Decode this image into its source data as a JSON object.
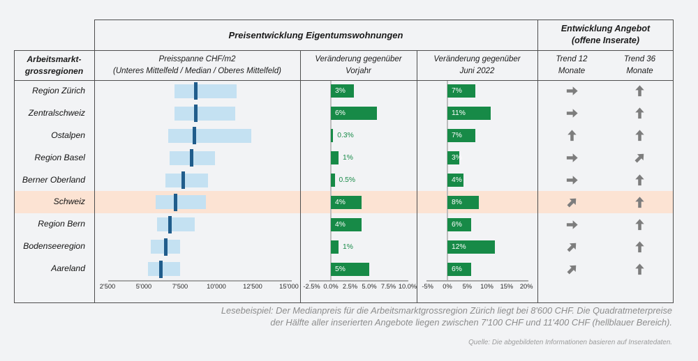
{
  "header": {
    "price_group_title": "Preisentwicklung Eigentumswohnungen",
    "supply_group_title_line1": "Entwicklung Angebot",
    "supply_group_title_line2": "(offene Inserate)"
  },
  "columns": {
    "regions_line1": "Arbeitsmarkt-",
    "regions_line2": "grossregionen",
    "price_line1": "Preisspanne CHF/m2",
    "price_line2": "(Unteres Mittelfeld / Median / Oberes Mittelfeld)",
    "yoy_line1": "Veränderung gegenüber",
    "yoy_line2": "Vorjahr",
    "june_line1": "Veränderung gegenüber",
    "june_line2": "Juni 2022",
    "trend12_line1": "Trend 12",
    "trend12_line2": "Monate",
    "trend36_line1": "Trend 36",
    "trend36_line2": "Monate"
  },
  "chart_data": {
    "type": "table",
    "subcharts": [
      "price-range-bar",
      "bar-yoy",
      "bar-june2022",
      "trend-arrows"
    ],
    "rows": [
      {
        "region": "Region Zürich",
        "price_low": 7100,
        "price_median": 8600,
        "price_high": 11400,
        "yoy_pct": 3,
        "yoy_label": "3%",
        "june_pct": 7,
        "june_label": "7%",
        "trend_12": "right",
        "trend_36": "up",
        "highlight": false
      },
      {
        "region": "Zentralschweiz",
        "price_low": 7100,
        "price_median": 8600,
        "price_high": 11300,
        "yoy_pct": 6,
        "yoy_label": "6%",
        "june_pct": 11,
        "june_label": "11%",
        "trend_12": "right",
        "trend_36": "up",
        "highlight": false
      },
      {
        "region": "Ostalpen",
        "price_low": 6700,
        "price_median": 8500,
        "price_high": 12400,
        "yoy_pct": 0.3,
        "yoy_label": "0.3%",
        "june_pct": 7,
        "june_label": "7%",
        "trend_12": "up",
        "trend_36": "up",
        "highlight": false
      },
      {
        "region": "Region Basel",
        "price_low": 6800,
        "price_median": 8300,
        "price_high": 9900,
        "yoy_pct": 1,
        "yoy_label": "1%",
        "june_pct": 3,
        "june_label": "3%",
        "trend_12": "right",
        "trend_36": "up-right",
        "highlight": false
      },
      {
        "region": "Berner Oberland",
        "price_low": 6500,
        "price_median": 7700,
        "price_high": 9400,
        "yoy_pct": 0.5,
        "yoy_label": "0.5%",
        "june_pct": 4,
        "june_label": "4%",
        "trend_12": "right",
        "trend_36": "up",
        "highlight": false
      },
      {
        "region": "Schweiz",
        "price_low": 5800,
        "price_median": 7200,
        "price_high": 9300,
        "yoy_pct": 4,
        "yoy_label": "4%",
        "june_pct": 8,
        "june_label": "8%",
        "trend_12": "up-right",
        "trend_36": "up",
        "highlight": true
      },
      {
        "region": "Region Bern",
        "price_low": 5900,
        "price_median": 6800,
        "price_high": 8500,
        "yoy_pct": 4,
        "yoy_label": "4%",
        "june_pct": 6,
        "june_label": "6%",
        "trend_12": "right",
        "trend_36": "up",
        "highlight": false
      },
      {
        "region": "Bodenseeregion",
        "price_low": 5500,
        "price_median": 6500,
        "price_high": 7500,
        "yoy_pct": 1,
        "yoy_label": "1%",
        "june_pct": 12,
        "june_label": "12%",
        "trend_12": "up-right",
        "trend_36": "up",
        "highlight": false
      },
      {
        "region": "Aareland",
        "price_low": 5300,
        "price_median": 6200,
        "price_high": 7500,
        "yoy_pct": 5,
        "yoy_label": "5%",
        "june_pct": 6,
        "june_label": "6%",
        "trend_12": "up-right",
        "trend_36": "up",
        "highlight": false
      }
    ],
    "price_axis": {
      "ticks": [
        2500,
        5000,
        7500,
        10000,
        12500,
        15000
      ],
      "tick_labels": [
        "2'500",
        "5'000",
        "7'500",
        "10'000",
        "12'500",
        "15'000"
      ],
      "min": 2500,
      "max": 15000
    },
    "yoy_axis": {
      "ticks": [
        -2.5,
        0,
        2.5,
        5,
        7.5,
        10
      ],
      "tick_labels": [
        "-2.5%",
        "0.0%",
        "2.5%",
        "5.0%",
        "7.5%",
        "10.0%"
      ],
      "min": -2.5,
      "max": 10
    },
    "june_axis": {
      "ticks": [
        -5,
        0,
        5,
        10,
        15,
        20
      ],
      "tick_labels": [
        "-5%",
        "0%",
        "5%",
        "10%",
        "15%",
        "20%"
      ],
      "min": -5,
      "max": 20
    }
  },
  "footer": {
    "lesebeispiel_line1": "Lesebeispiel: Der Medianpreis für die Arbeitsmarktgrossregion Zürich liegt bei 8'600 CHF. Die Quadratmeterpreise",
    "lesebeispiel_line2": "der Hälfte aller inserierten Angebote liegen zwischen 7'100 CHF und 11'400 CHF (hellblauer Bereich).",
    "quelle": "Quelle: Die abgebildeten Informationen basieren auf Inseratedaten."
  },
  "colors": {
    "background": "#f2f3f5",
    "range_bar": "#c4e1f2",
    "median_tick": "#205d8c",
    "positive_bar": "#178a47",
    "highlight_row": "#fce3d3",
    "trend_arrow": "#7d7d7d",
    "border": "#4d4d4d"
  }
}
